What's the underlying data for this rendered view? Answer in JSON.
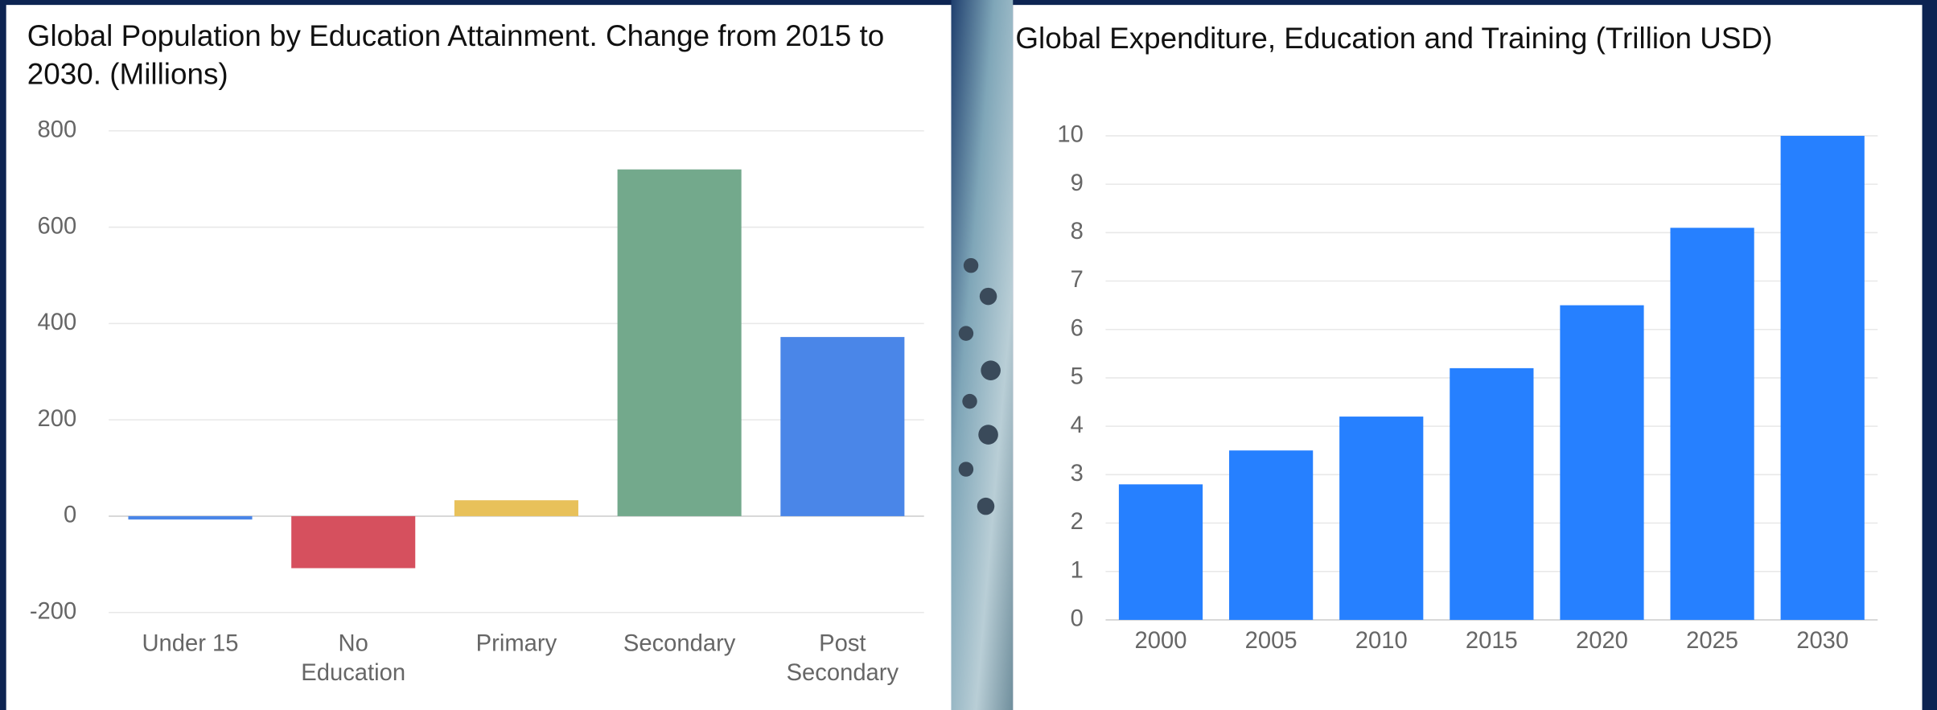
{
  "chart_data": [
    {
      "type": "bar",
      "title": "Global Population by Education Attainment. Change from 2015 to 2030. (Millions)",
      "categories": [
        "Under 15",
        "No\nEducation",
        "Primary",
        "Secondary",
        "Post\nSecondary"
      ],
      "values": [
        -7,
        -108,
        33,
        720,
        372
      ],
      "colors": [
        "#4a86e8",
        "#d6505e",
        "#e8c15a",
        "#73a98c",
        "#4a86e8"
      ],
      "ylim": [
        -200,
        800
      ],
      "yticks": [
        -200,
        0,
        200,
        400,
        600,
        800
      ],
      "grid": true
    },
    {
      "type": "bar",
      "title": "Global Expenditure, Education and Training (Trillion USD)",
      "categories": [
        "2000",
        "2005",
        "2010",
        "2015",
        "2020",
        "2025",
        "2030"
      ],
      "values": [
        2.8,
        3.5,
        4.2,
        5.2,
        6.5,
        8.1,
        10
      ],
      "color": "#2680ff",
      "ylim": [
        0,
        10
      ],
      "yticks": [
        0,
        1,
        2,
        3,
        4,
        5,
        6,
        7,
        8,
        9,
        10
      ],
      "grid": true
    }
  ]
}
